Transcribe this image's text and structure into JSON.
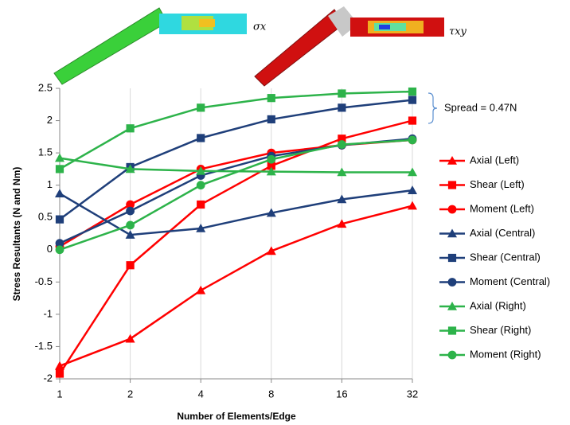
{
  "chart_data": {
    "type": "line",
    "categories": [
      "1",
      "2",
      "4",
      "8",
      "16",
      "32"
    ],
    "x_label": "Number of Elements/Edge",
    "y_label": "Stress Resultants (N and Nm)",
    "ylim": [
      -2,
      2.5
    ],
    "yticks": [
      -2,
      -1.5,
      -1,
      -0.5,
      0,
      0.5,
      1,
      1.5,
      2,
      2.5
    ],
    "grid": "x",
    "legend": "right",
    "annotation": "Spread = 0.47N",
    "image_labels": [
      "σx",
      "τxy"
    ],
    "series": [
      {
        "name": "Axial (Left)",
        "color": "#ff0000",
        "marker": "triangle",
        "values": [
          -1.8,
          -1.38,
          -0.63,
          -0.02,
          0.4,
          0.68
        ]
      },
      {
        "name": "Shear (Left)",
        "color": "#ff0000",
        "marker": "square",
        "values": [
          -1.92,
          -0.24,
          0.7,
          1.3,
          1.72,
          2.0
        ]
      },
      {
        "name": "Moment (Left)",
        "color": "#ff0000",
        "marker": "circle",
        "values": [
          0.05,
          0.7,
          1.25,
          1.5,
          1.62,
          1.7
        ]
      },
      {
        "name": "Axial (Central)",
        "color": "#1f3f7a",
        "marker": "triangle",
        "values": [
          0.87,
          0.23,
          0.33,
          0.57,
          0.78,
          0.92
        ]
      },
      {
        "name": "Shear (Central)",
        "color": "#1f3f7a",
        "marker": "square",
        "values": [
          0.47,
          1.28,
          1.73,
          2.02,
          2.2,
          2.32
        ]
      },
      {
        "name": "Moment (Central)",
        "color": "#1f3f7a",
        "marker": "circle",
        "values": [
          0.1,
          0.6,
          1.15,
          1.45,
          1.62,
          1.72
        ]
      },
      {
        "name": "Axial (Right)",
        "color": "#2db34a",
        "marker": "triangle",
        "values": [
          1.42,
          1.25,
          1.22,
          1.21,
          1.2,
          1.2
        ]
      },
      {
        "name": "Shear (Right)",
        "color": "#2db34a",
        "marker": "square",
        "values": [
          1.25,
          1.88,
          2.2,
          2.35,
          2.42,
          2.45
        ]
      },
      {
        "name": "Moment (Right)",
        "color": "#2db34a",
        "marker": "circle",
        "values": [
          0.0,
          0.38,
          1.0,
          1.4,
          1.63,
          1.7
        ]
      }
    ]
  }
}
